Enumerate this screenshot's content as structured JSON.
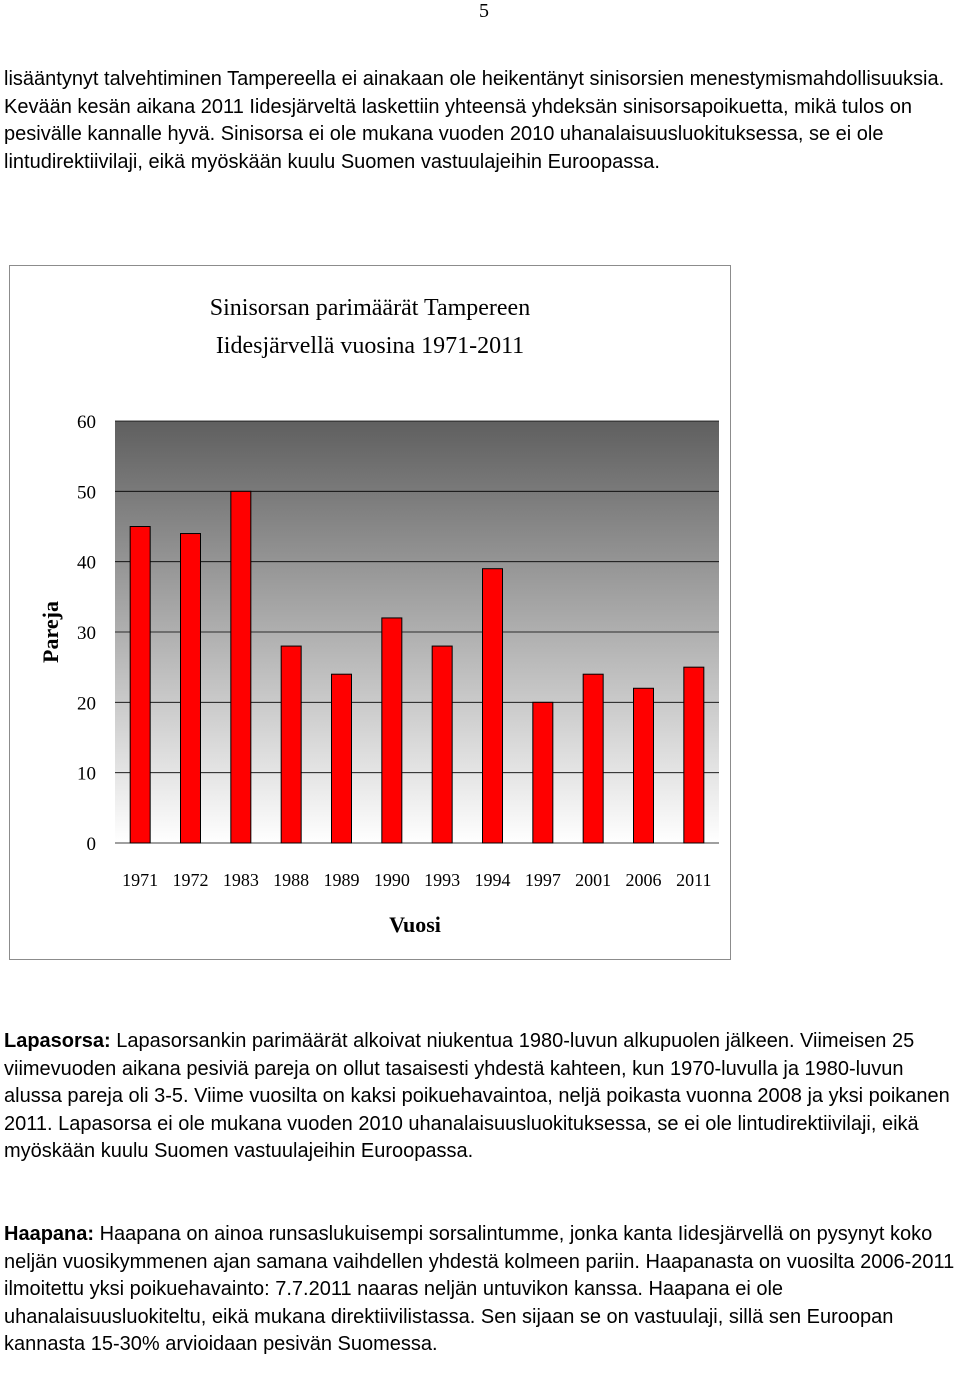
{
  "page": {
    "number": "5"
  },
  "paragraphs": {
    "p1": "lisääntynyt talvehtiminen Tampereella ei ainakaan ole heikentänyt sinisorsien menestymismahdollisuuksia. Kevään kesän aikana 2011 Iidesjärveltä laskettiin yhteensä yhdeksän sinisorsapoikuetta, mikä tulos on pesivälle kannalle hyvä. Sinisorsa ei ole mukana vuoden 2010 uhanalaisuusluokituksessa, se ei ole lintudirektiivilaji, eikä myöskään kuulu Suomen vastuulajeihin Euroopassa.",
    "p2_title": "Lapasorsa:",
    "p2_body": " Lapasorsankin parimäärät alkoivat niukentua 1980-luvun alkupuolen jälkeen. Viimeisen 25 viimevuoden aikana pesiviä pareja on ollut tasaisesti yhdestä kahteen, kun 1970-luvulla ja 1980-luvun alussa pareja oli 3-5. Viime vuosilta on kaksi poikuehavaintoa, neljä poikasta vuonna 2008 ja yksi poikanen 2011. Lapasorsa ei ole mukana vuoden 2010 uhanalaisuusluokituksessa, se ei ole lintudirektiivilaji, eikä myöskään kuulu Suomen vastuulajeihin Euroopassa.",
    "p3_title": "Haapana:",
    "p3_body": " Haapana on ainoa runsaslukuisempi sorsalintumme, jonka kanta Iidesjärvellä on pysynyt koko neljän vuosikymmenen ajan samana vaihdellen yhdestä kolmeen pariin. Haapanasta on vuosilta 2006-2011 ilmoitettu yksi poikuehavainto: 7.7.2011 naaras neljän untuvikon kanssa. Haapana ei ole uhanalaisuusluokiteltu, eikä mukana direktiivilistassa. Sen sijaan se on vastuulaji, sillä sen Euroopan kannasta 15-30% arvioidaan pesivän Suomessa."
  },
  "chart_data": {
    "type": "bar",
    "title_line1": "Sinisorsan parimäärät Tampereen",
    "title_line2": "Iidesjärvellä vuosina 1971-2011",
    "xlabel": "Vuosi",
    "ylabel": "Pareja",
    "categories": [
      "1971",
      "1972",
      "1983",
      "1988",
      "1989",
      "1990",
      "1993",
      "1994",
      "1997",
      "2001",
      "2006",
      "2011"
    ],
    "values": [
      45,
      44,
      50,
      28,
      24,
      32,
      28,
      39,
      20,
      24,
      22,
      25
    ],
    "ylim": [
      0,
      60
    ],
    "yticks": [
      "0",
      "10",
      "20",
      "30",
      "40",
      "50",
      "60"
    ],
    "grid": true,
    "legend": "none",
    "colors": {
      "bar": "#ff0000",
      "plot_top": "#5f5f5f",
      "plot_bottom": "#ffffff",
      "gridline": "#000000"
    }
  }
}
